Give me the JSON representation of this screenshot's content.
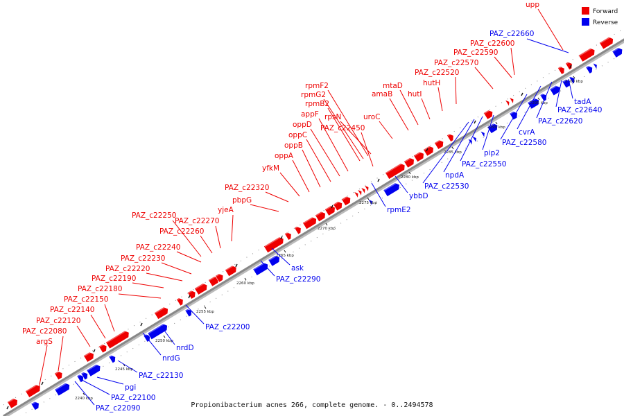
{
  "caption": "Propionibacterium acnes 266, complete genome. - 0..2494578",
  "colors": {
    "forward": "#ee0000",
    "reverse": "#0000ee",
    "axis": "#999999"
  },
  "legend": [
    {
      "label": "Forward",
      "strand": "forward"
    },
    {
      "label": "Reverse",
      "strand": "reverse"
    }
  ],
  "axis_ticks": [
    "2240 kbp",
    "2245 kbp",
    "2250 kbp",
    "2255 kbp",
    "2260 kbp",
    "2265 kbp",
    "2270 kbp",
    "2275 kbp",
    "2280 kbp",
    "2285 kbp",
    "2290 kbp",
    "2295 kbp",
    "2300 kbp"
  ],
  "forward_genes": [
    "argS",
    "PAZ_c22080",
    "PAZ_c22120",
    "PAZ_c22140",
    "PAZ_c22150",
    "PAZ_c22180",
    "PAZ_c22190",
    "PAZ_c22220",
    "PAZ_c22230",
    "PAZ_c22240",
    "PAZ_c22250",
    "PAZ_c22260",
    "PAZ_c22270",
    "yjeA",
    "pbpG",
    "PAZ_c22320",
    "yfkM",
    "oppA",
    "oppB",
    "oppC",
    "oppD",
    "appF",
    "rpmB2",
    "rpmG2",
    "rpmF2",
    "rpsN",
    "PAZ_c22450",
    "uroC",
    "amaB",
    "mtaD",
    "hutI",
    "hutH",
    "PAZ_c22520",
    "PAZ_c22570",
    "PAZ_c22590",
    "PAZ_c22600",
    "upp"
  ],
  "reverse_genes": [
    "PAZ_c22090",
    "PAZ_c22100",
    "pgi",
    "PAZ_c22130",
    "nrdG",
    "nrdD",
    "PAZ_c22200",
    "PAZ_c22290",
    "ask",
    "rpmE2",
    "ybbD",
    "PAZ_c22530",
    "npdA",
    "PAZ_c22550",
    "pip2",
    "PAZ_c22580",
    "cvrA",
    "PAZ_c22620",
    "PAZ_c22640",
    "tadA",
    "PAZ_c22660"
  ]
}
